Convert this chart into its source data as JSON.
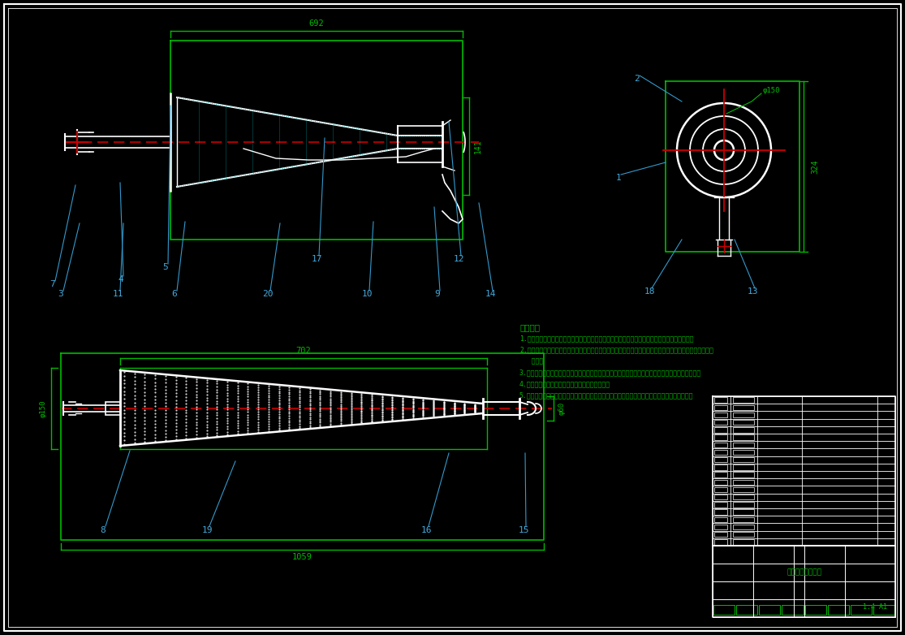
{
  "bg_color": "#000000",
  "green": "#00BB00",
  "cyan": "#00BBBB",
  "white": "#FFFFFF",
  "red": "#CC0000",
  "blue": "#3399CC",
  "label_color": "#44AADD",
  "notes_title": "技术要求",
  "notes": [
    "1.购入零配件若干及组件（包括水果袋、木杆件），均应按照标准材料的常规方案进行质量验收。",
    "2.零件在装配定位后须涂清漆和防腐漆若干道，不得有气泡、飞边、毛刺度、锈蚀、划痕、油污、有色差的缺",
    "   陷等。",
    "3.装配螺钉紧固，螺纹孔在攻螺纹配合尺寸时，有足够运动距离应按名义尺寸十系数及后旋转切换角。",
    "4.装配过程不允许不文明操作，零、划掉螺纹处。",
    "5.组件，迎接由迎日答到材，严禁行在使用量不合适的旋紧转矩扳手，发現由迎转运，迎日知地。"
  ],
  "view1_labels": [
    [
      "7",
      68,
      346,
      93,
      228
    ],
    [
      "4",
      152,
      340,
      148,
      225
    ],
    [
      "5",
      207,
      325,
      210,
      130
    ],
    [
      "17",
      393,
      315,
      400,
      170
    ],
    [
      "12",
      568,
      315,
      553,
      150
    ],
    [
      "3",
      78,
      358,
      98,
      275
    ],
    [
      "11",
      148,
      358,
      152,
      275
    ],
    [
      "6",
      218,
      358,
      228,
      273
    ],
    [
      "20",
      333,
      358,
      345,
      275
    ],
    [
      "10",
      455,
      358,
      460,
      273
    ],
    [
      "9",
      542,
      358,
      535,
      255
    ],
    [
      "14",
      607,
      358,
      590,
      250
    ]
  ],
  "view2_labels": [
    [
      "2",
      788,
      93,
      840,
      125
    ],
    [
      "1",
      765,
      215,
      820,
      200
    ],
    [
      "18",
      803,
      355,
      840,
      295
    ],
    [
      "13",
      930,
      355,
      905,
      295
    ]
  ],
  "view3_labels": [
    [
      "8",
      130,
      648,
      160,
      555
    ],
    [
      "19",
      258,
      648,
      290,
      568
    ],
    [
      "16",
      528,
      648,
      553,
      558
    ],
    [
      "15",
      648,
      648,
      647,
      558
    ]
  ]
}
